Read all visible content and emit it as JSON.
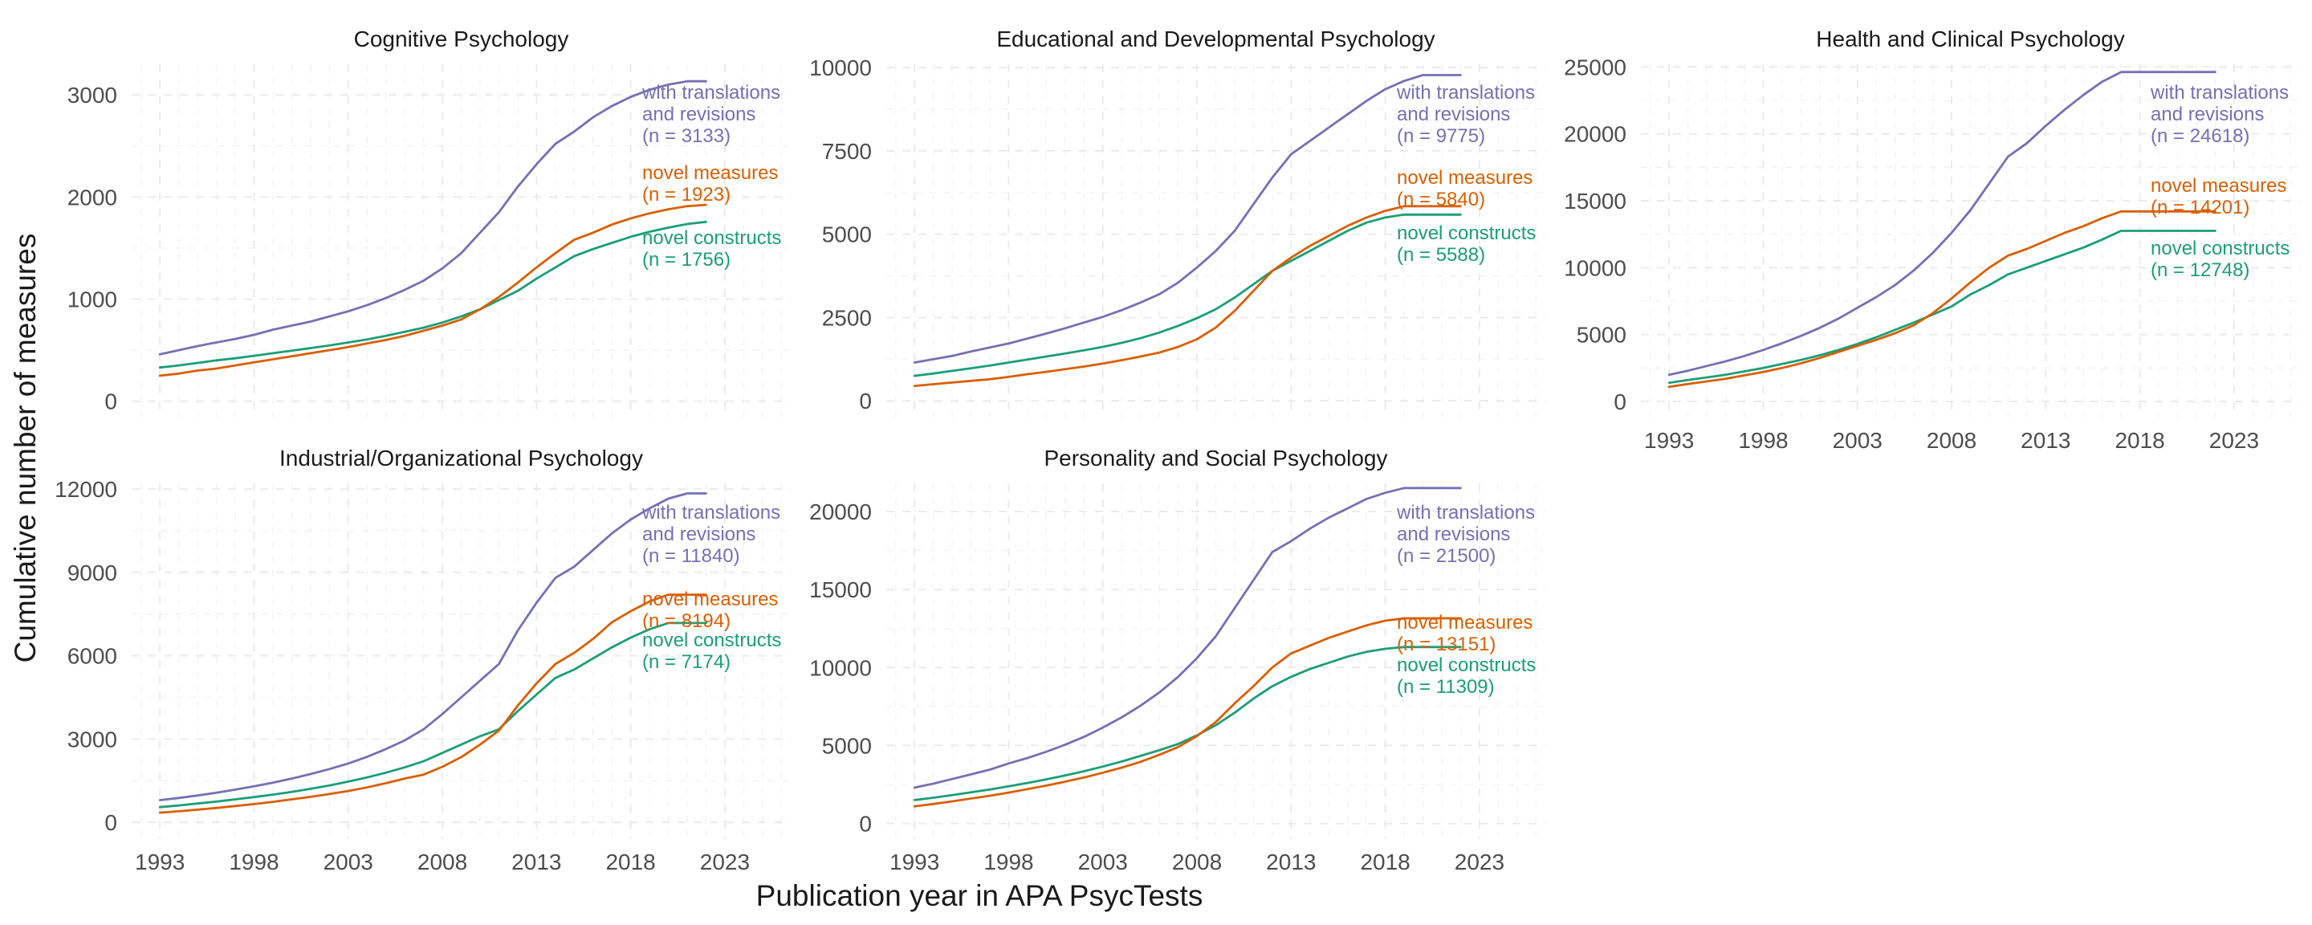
{
  "chart_data": {
    "type": "line",
    "xlabel": "Publication year in APA PsycTests",
    "ylabel": "Cumulative number of measures",
    "x_ticks": [
      1993,
      1998,
      2003,
      2008,
      2013,
      2018,
      2023
    ],
    "xlim": [
      1991.5,
      2026.5
    ],
    "x": [
      1993,
      1994,
      1995,
      1996,
      1997,
      1998,
      1999,
      2000,
      2001,
      2002,
      2003,
      2004,
      2005,
      2006,
      2007,
      2008,
      2009,
      2010,
      2011,
      2012,
      2013,
      2014,
      2015,
      2016,
      2017,
      2018,
      2019,
      2020,
      2021,
      2022
    ],
    "colors": {
      "with_translations": "#7570b3",
      "novel_measures": "#d95f02",
      "novel_constructs": "#1b9e77"
    },
    "grid": true,
    "legend": "none (direct labels at line ends)",
    "panels": [
      {
        "title": "Cognitive Psychology",
        "y_ticks": [
          0,
          1000,
          2000,
          3000
        ],
        "ylim": [
          -160,
          3300
        ],
        "series": [
          {
            "key": "with_translations",
            "label_lines": [
              "with translations",
              "and revisions",
              "(n = 3133)"
            ],
            "values": [
              460,
              500,
              540,
              575,
              610,
              650,
              700,
              740,
              780,
              830,
              880,
              940,
              1010,
              1090,
              1180,
              1300,
              1450,
              1650,
              1850,
              2100,
              2320,
              2520,
              2640,
              2780,
              2890,
              2980,
              3050,
              3100,
              3133,
              3133
            ]
          },
          {
            "key": "novel_measures",
            "label_lines": [
              "novel measures",
              "(n = 1923)"
            ],
            "values": [
              250,
              270,
              300,
              320,
              350,
              380,
              410,
              440,
              470,
              500,
              530,
              565,
              600,
              640,
              690,
              740,
              800,
              900,
              1020,
              1160,
              1310,
              1450,
              1580,
              1650,
              1730,
              1790,
              1840,
              1880,
              1910,
              1923
            ]
          },
          {
            "key": "novel_constructs",
            "label_lines": [
              "novel constructs",
              "(n = 1756)"
            ],
            "values": [
              330,
              350,
              375,
              400,
              420,
              445,
              470,
              495,
              520,
              545,
              575,
              605,
              640,
              680,
              720,
              770,
              830,
              900,
              990,
              1080,
              1200,
              1310,
              1420,
              1490,
              1550,
              1610,
              1660,
              1700,
              1735,
              1756
            ]
          }
        ]
      },
      {
        "title": "Educational and Developmental Psychology",
        "y_ticks": [
          0,
          2500,
          5000,
          7500,
          10000
        ],
        "ylim": [
          -500,
          10100
        ],
        "series": [
          {
            "key": "with_translations",
            "label_lines": [
              "with translations",
              "and revisions",
              "(n = 9775)"
            ],
            "values": [
              1150,
              1250,
              1350,
              1480,
              1600,
              1720,
              1870,
              2020,
              2180,
              2350,
              2520,
              2720,
              2950,
              3200,
              3550,
              4000,
              4500,
              5100,
              5900,
              6700,
              7400,
              7800,
              8200,
              8600,
              9000,
              9350,
              9600,
              9775,
              9775,
              9775
            ]
          },
          {
            "key": "novel_measures",
            "label_lines": [
              "novel measures",
              "(n = 5840)"
            ],
            "values": [
              450,
              500,
              550,
              600,
              650,
              720,
              800,
              870,
              950,
              1030,
              1120,
              1220,
              1330,
              1450,
              1620,
              1850,
              2200,
              2700,
              3300,
              3900,
              4300,
              4650,
              4950,
              5250,
              5500,
              5700,
              5840,
              5840,
              5840,
              5840
            ]
          },
          {
            "key": "novel_constructs",
            "label_lines": [
              "novel constructs",
              "(n = 5588)"
            ],
            "values": [
              750,
              820,
              900,
              980,
              1060,
              1150,
              1240,
              1330,
              1420,
              1520,
              1620,
              1740,
              1880,
              2050,
              2250,
              2480,
              2750,
              3100,
              3500,
              3900,
              4200,
              4500,
              4800,
              5100,
              5350,
              5500,
              5588,
              5588,
              5588,
              5588
            ]
          }
        ]
      },
      {
        "title": "Health and Clinical Psychology",
        "y_ticks": [
          0,
          5000,
          10000,
          15000,
          20000,
          25000
        ],
        "ylim": [
          -1200,
          25200
        ],
        "series": [
          {
            "key": "with_translations",
            "label_lines": [
              "with translations",
              "and revisions",
              "(n = 24618)"
            ],
            "values": [
              2000,
              2300,
              2650,
              3000,
              3400,
              3850,
              4350,
              4900,
              5500,
              6200,
              7000,
              7800,
              8700,
              9800,
              11100,
              12600,
              14300,
              16300,
              18300,
              19300,
              20600,
              21800,
              22900,
              23900,
              24618,
              24618,
              24618,
              24618,
              24618,
              24618
            ]
          },
          {
            "key": "novel_measures",
            "label_lines": [
              "novel measures",
              "(n = 14201)"
            ],
            "values": [
              1100,
              1300,
              1500,
              1700,
              1950,
              2200,
              2500,
              2850,
              3250,
              3700,
              4150,
              4600,
              5100,
              5700,
              6600,
              7700,
              8900,
              10000,
              10900,
              11400,
              12000,
              12600,
              13100,
              13700,
              14201,
              14201,
              14201,
              14201,
              14201,
              14201
            ]
          },
          {
            "key": "novel_constructs",
            "label_lines": [
              "novel constructs",
              "(n = 12748)"
            ],
            "values": [
              1400,
              1600,
              1800,
              2000,
              2250,
              2500,
              2800,
              3100,
              3450,
              3850,
              4300,
              4800,
              5350,
              5900,
              6500,
              7100,
              8000,
              8700,
              9500,
              10000,
              10500,
              11000,
              11500,
              12100,
              12748,
              12748,
              12748,
              12748,
              12748,
              12748
            ]
          }
        ]
      },
      {
        "title": "Industrial/Organizational Psychology",
        "y_ticks": [
          0,
          3000,
          6000,
          9000,
          12000
        ],
        "ylim": [
          -600,
          12200
        ],
        "series": [
          {
            "key": "with_translations",
            "label_lines": [
              "with translations",
              "and revisions",
              "(n = 11840)"
            ],
            "values": [
              800,
              880,
              970,
              1070,
              1180,
              1300,
              1430,
              1580,
              1740,
              1920,
              2120,
              2360,
              2640,
              2950,
              3350,
              3900,
              4500,
              5100,
              5700,
              6900,
              7900,
              8800,
              9200,
              9800,
              10400,
              10900,
              11300,
              11650,
              11840,
              11840
            ]
          },
          {
            "key": "novel_measures",
            "label_lines": [
              "novel measures",
              "(n = 8194)"
            ],
            "values": [
              350,
              400,
              460,
              520,
              590,
              660,
              740,
              830,
              920,
              1020,
              1130,
              1260,
              1410,
              1580,
              1720,
              2000,
              2350,
              2800,
              3300,
              4200,
              5000,
              5700,
              6100,
              6600,
              7200,
              7600,
              7950,
              8194,
              8194,
              8194
            ]
          },
          {
            "key": "novel_constructs",
            "label_lines": [
              "novel constructs",
              "(n = 7174)"
            ],
            "values": [
              550,
              610,
              680,
              750,
              830,
              910,
              1000,
              1100,
              1210,
              1330,
              1470,
              1620,
              1790,
              1980,
              2200,
              2500,
              2800,
              3100,
              3350,
              4000,
              4600,
              5200,
              5500,
              5900,
              6300,
              6650,
              6950,
              7174,
              7174,
              7174
            ]
          }
        ]
      },
      {
        "title": "Personality and Social Psychology",
        "y_ticks": [
          0,
          5000,
          10000,
          15000,
          20000
        ],
        "ylim": [
          -1000,
          21800
        ],
        "series": [
          {
            "key": "with_translations",
            "label_lines": [
              "with translations",
              "and revisions",
              "(n = 21500)"
            ],
            "values": [
              2300,
              2550,
              2850,
              3150,
              3450,
              3850,
              4200,
              4600,
              5050,
              5550,
              6150,
              6800,
              7550,
              8400,
              9400,
              10600,
              12000,
              13800,
              15600,
              17400,
              18100,
              18900,
              19600,
              20200,
              20800,
              21200,
              21500,
              21500,
              21500,
              21500
            ]
          },
          {
            "key": "novel_measures",
            "label_lines": [
              "novel measures",
              "(n = 13151)"
            ],
            "values": [
              1100,
              1250,
              1420,
              1600,
              1780,
              1980,
              2200,
              2430,
              2680,
              2950,
              3250,
              3580,
              3950,
              4400,
              4900,
              5600,
              6500,
              7700,
              8800,
              10000,
              10900,
              11400,
              11900,
              12300,
              12700,
              13000,
              13151,
              13151,
              13151,
              13151
            ]
          },
          {
            "key": "novel_constructs",
            "label_lines": [
              "novel constructs",
              "(n = 11309)"
            ],
            "values": [
              1500,
              1650,
              1820,
              2000,
              2180,
              2380,
              2600,
              2830,
              3080,
              3350,
              3650,
              3970,
              4330,
              4700,
              5100,
              5650,
              6300,
              7100,
              8000,
              8800,
              9400,
              9900,
              10300,
              10700,
              11000,
              11200,
              11309,
              11309,
              11309,
              11309
            ]
          }
        ]
      }
    ]
  }
}
